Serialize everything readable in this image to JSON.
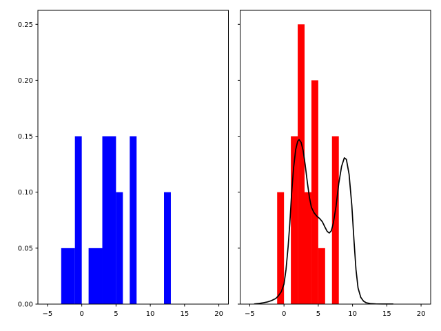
{
  "figure": {
    "background": "#ffffff",
    "title": ""
  },
  "chart_data": [
    {
      "type": "bar",
      "panel": "left",
      "title": "",
      "xlabel": "",
      "ylabel": "",
      "grid": false,
      "legend": null,
      "bar_color": "#0000ff",
      "xlim": [
        -6.4,
        21.4
      ],
      "ylim": [
        0,
        0.2625
      ],
      "xticks": {
        "values": [
          -5,
          0,
          5,
          10,
          15,
          20
        ],
        "labels": [
          "−5",
          "0",
          "5",
          "10",
          "15",
          "20"
        ]
      },
      "yticks": {
        "values": [
          0.0,
          0.05,
          0.1,
          0.15,
          0.2,
          0.25
        ],
        "labels": [
          "0.00",
          "0.05",
          "0.10",
          "0.15",
          "0.20",
          "0.25"
        ],
        "show_labels": true
      },
      "bars": [
        {
          "x0": -3,
          "x1": -1,
          "height": 0.05
        },
        {
          "x0": -1,
          "x1": 0,
          "height": 0.15
        },
        {
          "x0": 1,
          "x1": 3,
          "height": 0.05
        },
        {
          "x0": 3,
          "x1": 5,
          "height": 0.15
        },
        {
          "x0": 5,
          "x1": 6,
          "height": 0.1
        },
        {
          "x0": 7,
          "x1": 8,
          "height": 0.15
        },
        {
          "x0": 12,
          "x1": 13,
          "height": 0.1
        }
      ]
    },
    {
      "type": "bar+line",
      "panel": "right",
      "title": "",
      "xlabel": "",
      "ylabel": "",
      "grid": false,
      "legend": null,
      "bar_color": "#ff0000",
      "xlim": [
        -6.4,
        21.4
      ],
      "ylim": [
        0,
        0.2625
      ],
      "xticks": {
        "values": [
          -5,
          0,
          5,
          10,
          15,
          20
        ],
        "labels": [
          "−5",
          "0",
          "5",
          "10",
          "15",
          "20"
        ]
      },
      "yticks": {
        "values": [
          0.0,
          0.05,
          0.1,
          0.15,
          0.2,
          0.25
        ],
        "labels": [],
        "show_labels": false
      },
      "bars": [
        {
          "x0": -1,
          "x1": 0,
          "height": 0.1
        },
        {
          "x0": 1,
          "x1": 2,
          "height": 0.15
        },
        {
          "x0": 2,
          "x1": 3,
          "height": 0.25
        },
        {
          "x0": 3,
          "x1": 4,
          "height": 0.1
        },
        {
          "x0": 4,
          "x1": 5,
          "height": 0.2
        },
        {
          "x0": 5,
          "x1": 6,
          "height": 0.05
        },
        {
          "x0": 7,
          "x1": 8,
          "height": 0.15
        }
      ],
      "line": {
        "name": "kde-curve",
        "color": "#000000",
        "width": 1.7,
        "points": [
          [
            -4.3,
            0.0002
          ],
          [
            -3.6,
            0.0006
          ],
          [
            -3.0,
            0.0012
          ],
          [
            -2.4,
            0.002
          ],
          [
            -1.8,
            0.0032
          ],
          [
            -1.2,
            0.005
          ],
          [
            -0.8,
            0.0075
          ],
          [
            -0.4,
            0.011
          ],
          [
            0.0,
            0.018
          ],
          [
            0.3,
            0.031
          ],
          [
            0.6,
            0.051
          ],
          [
            0.85,
            0.072
          ],
          [
            1.1,
            0.098
          ],
          [
            1.4,
            0.122
          ],
          [
            1.7,
            0.138
          ],
          [
            2.0,
            0.1455
          ],
          [
            2.2,
            0.147
          ],
          [
            2.5,
            0.1445
          ],
          [
            2.8,
            0.137
          ],
          [
            3.1,
            0.124
          ],
          [
            3.4,
            0.109
          ],
          [
            3.7,
            0.0955
          ],
          [
            4.0,
            0.0865
          ],
          [
            4.4,
            0.0815
          ],
          [
            4.8,
            0.0785
          ],
          [
            5.2,
            0.0765
          ],
          [
            5.6,
            0.0735
          ],
          [
            6.0,
            0.0685
          ],
          [
            6.3,
            0.065
          ],
          [
            6.6,
            0.0635
          ],
          [
            6.9,
            0.0655
          ],
          [
            7.2,
            0.0725
          ],
          [
            7.6,
            0.0875
          ],
          [
            8.0,
            0.108
          ],
          [
            8.4,
            0.123
          ],
          [
            8.8,
            0.1307
          ],
          [
            9.1,
            0.1293
          ],
          [
            9.5,
            0.116
          ],
          [
            9.9,
            0.088
          ],
          [
            10.2,
            0.058
          ],
          [
            10.5,
            0.031
          ],
          [
            10.8,
            0.0145
          ],
          [
            11.2,
            0.006
          ],
          [
            11.6,
            0.0027
          ],
          [
            12.0,
            0.0012
          ],
          [
            12.6,
            0.0005
          ],
          [
            13.4,
            0.0002
          ],
          [
            14.4,
            0.0001
          ],
          [
            15.9,
            0.0001
          ]
        ]
      }
    }
  ]
}
